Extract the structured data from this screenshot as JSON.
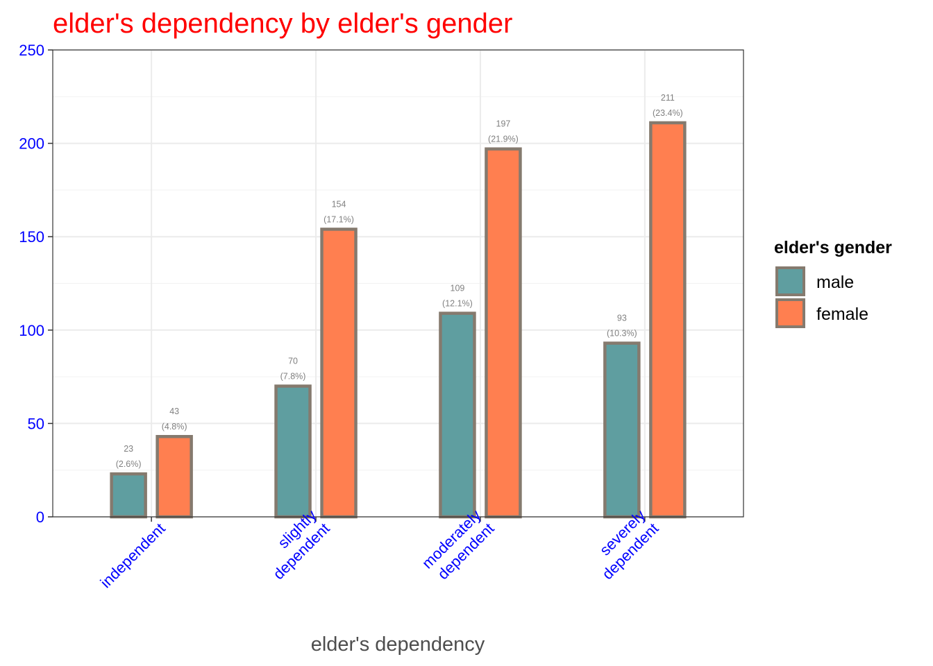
{
  "chart_data": {
    "type": "bar",
    "title": "elder's dependency by elder's gender",
    "xlabel": "elder's dependency",
    "ylabel": "",
    "categories": [
      [
        "independent"
      ],
      [
        "slightly",
        "dependent"
      ],
      [
        "moderately",
        "dependent"
      ],
      [
        "severely",
        "dependent"
      ]
    ],
    "series": [
      {
        "name": "male",
        "values": [
          23,
          70,
          109,
          93
        ],
        "labels": [
          "(2.6%)",
          "(7.8%)",
          "(12.1%)",
          "(10.3%)"
        ],
        "color": "#5f9ea0"
      },
      {
        "name": "female",
        "values": [
          43,
          154,
          197,
          211
        ],
        "labels": [
          "(4.8%)",
          "(17.1%)",
          "(21.9%)",
          "(23.4%)"
        ],
        "color": "#ff7f50"
      }
    ],
    "ylim": [
      0,
      250
    ],
    "yticks": [
      0,
      50,
      100,
      150,
      200,
      250
    ],
    "grid": true,
    "legend": {
      "title": "elder's gender",
      "position": "right"
    },
    "colors": {
      "title": "#ff0000",
      "tick_labels": "#0000ff",
      "bar_outline": "#857a6e",
      "data_labels": "#808080",
      "grid": "#ebebeb",
      "panel_border": "#333333"
    }
  }
}
